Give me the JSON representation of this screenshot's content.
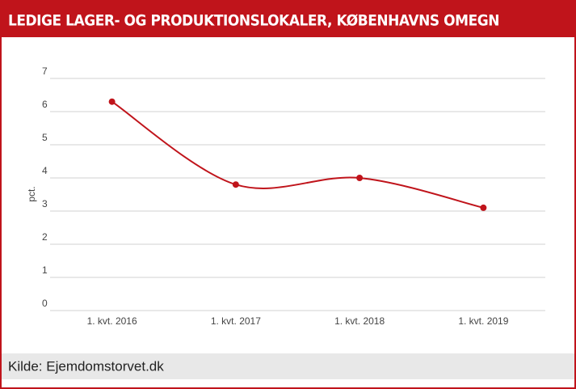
{
  "chart_data": {
    "type": "line",
    "title": "LEDIGE LAGER- OG PRODUKTIONSLOKALER, KØBENHAVNS OMEGN",
    "y_label": "pct.",
    "categories": [
      "1. kvt. 2016",
      "1. kvt. 2017",
      "1. kvt. 2018",
      "1. kvt. 2019"
    ],
    "values": [
      6.3,
      3.8,
      4.0,
      3.1
    ],
    "color": "#c0141b",
    "ylim": [
      0,
      7
    ],
    "yticks": [
      0,
      1,
      2,
      3,
      4,
      5,
      6,
      7
    ],
    "grid": true,
    "source": "Kilde: Ejemdomstorvet.dk"
  }
}
